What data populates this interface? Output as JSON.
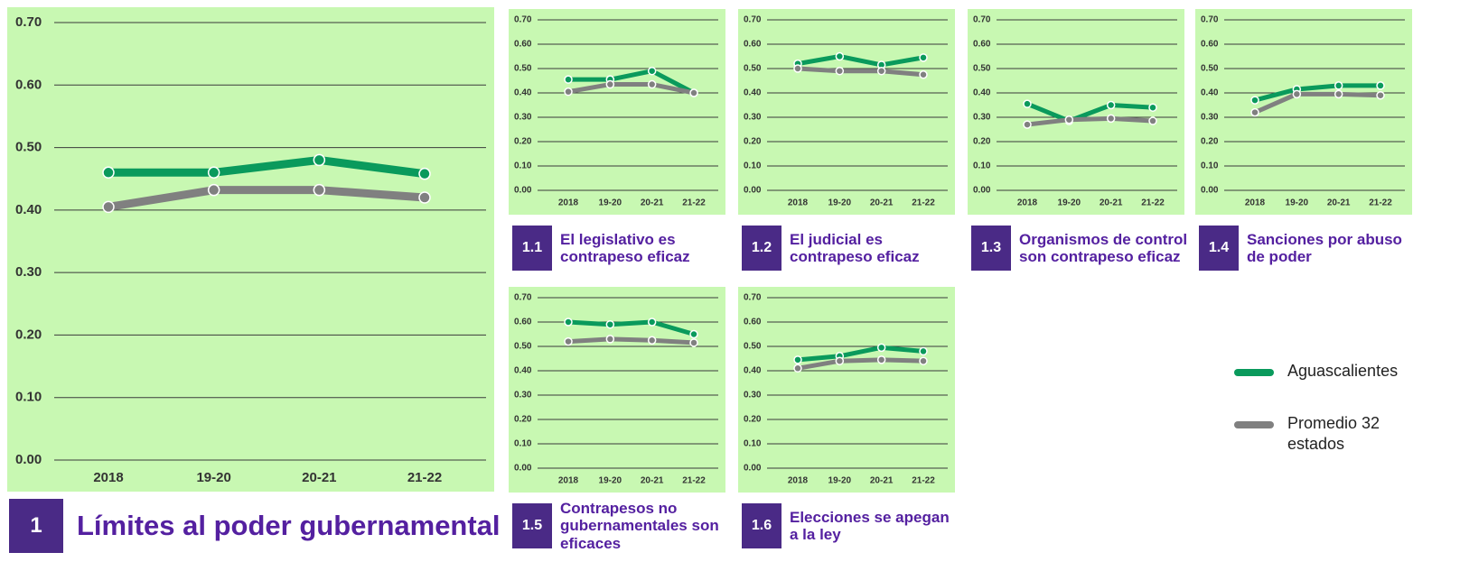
{
  "chart_data": [
    {
      "type": "line",
      "number": "1",
      "title": "Límites al poder gubernamental",
      "categories": [
        "2018",
        "19-20",
        "20-21",
        "21-22"
      ],
      "series": [
        {
          "name": "Aguascalientes",
          "color": "#0a9a5c",
          "values": [
            0.46,
            0.46,
            0.48,
            0.458
          ]
        },
        {
          "name": "Promedio 32 estados",
          "color": "#808080",
          "values": [
            0.405,
            0.432,
            0.432,
            0.42
          ]
        }
      ],
      "ylim": [
        0,
        0.7
      ],
      "yticks": [
        {
          "value": 0,
          "label": "0.00"
        },
        {
          "value": 0.1,
          "label": "0.10"
        },
        {
          "value": 0.2,
          "label": "0.20"
        },
        {
          "value": 0.3,
          "label": "0.30"
        },
        {
          "value": 0.4,
          "label": "0.40"
        },
        {
          "value": 0.5,
          "label": "0.50"
        },
        {
          "value": 0.6,
          "label": "0.60"
        },
        {
          "value": 0.7,
          "label": "0.70"
        }
      ]
    },
    {
      "type": "line",
      "number": "1.1",
      "title": "El legislativo es contrapeso eficaz",
      "categories": [
        "2018",
        "19-20",
        "20-21",
        "21-22"
      ],
      "series": [
        {
          "color": "#0a9a5c",
          "values": [
            0.455,
            0.455,
            0.49,
            0.4
          ]
        },
        {
          "color": "#808080",
          "values": [
            0.405,
            0.435,
            0.435,
            0.4
          ]
        }
      ],
      "ylim": [
        0,
        0.7
      ],
      "yticks": [
        {
          "value": 0,
          "label": "0.00"
        },
        {
          "value": 0.1,
          "label": "0.10"
        },
        {
          "value": 0.2,
          "label": "0.20"
        },
        {
          "value": 0.3,
          "label": "0.30"
        },
        {
          "value": 0.4,
          "label": "0.40"
        },
        {
          "value": 0.5,
          "label": "0.50"
        },
        {
          "value": 0.6,
          "label": "0.60"
        },
        {
          "value": 0.7,
          "label": "0.70"
        }
      ]
    },
    {
      "type": "line",
      "number": "1.2",
      "title": "El judicial es contrapeso eficaz",
      "categories": [
        "2018",
        "19-20",
        "20-21",
        "21-22"
      ],
      "series": [
        {
          "color": "#0a9a5c",
          "values": [
            0.52,
            0.55,
            0.515,
            0.545
          ]
        },
        {
          "color": "#808080",
          "values": [
            0.5,
            0.49,
            0.49,
            0.475
          ]
        }
      ],
      "ylim": [
        0,
        0.7
      ],
      "yticks": [
        {
          "value": 0,
          "label": "0.00"
        },
        {
          "value": 0.1,
          "label": "0.10"
        },
        {
          "value": 0.2,
          "label": "0.20"
        },
        {
          "value": 0.3,
          "label": "0.30"
        },
        {
          "value": 0.4,
          "label": "0.40"
        },
        {
          "value": 0.5,
          "label": "0.50"
        },
        {
          "value": 0.6,
          "label": "0.60"
        },
        {
          "value": 0.7,
          "label": "0.70"
        }
      ]
    },
    {
      "type": "line",
      "number": "1.3",
      "title": "Organismos de control son contrapeso eficaz",
      "categories": [
        "2018",
        "19-20",
        "20-21",
        "21-22"
      ],
      "series": [
        {
          "color": "#0a9a5c",
          "values": [
            0.355,
            0.285,
            0.35,
            0.34
          ]
        },
        {
          "color": "#808080",
          "values": [
            0.27,
            0.29,
            0.295,
            0.285
          ]
        }
      ],
      "ylim": [
        0,
        0.7
      ],
      "yticks": [
        {
          "value": 0,
          "label": "0.00"
        },
        {
          "value": 0.1,
          "label": "0.10"
        },
        {
          "value": 0.2,
          "label": "0.20"
        },
        {
          "value": 0.3,
          "label": "0.30"
        },
        {
          "value": 0.4,
          "label": "0.40"
        },
        {
          "value": 0.5,
          "label": "0.50"
        },
        {
          "value": 0.6,
          "label": "0.60"
        },
        {
          "value": 0.7,
          "label": "0.70"
        }
      ]
    },
    {
      "type": "line",
      "number": "1.4",
      "title": "Sanciones por abuso de poder",
      "categories": [
        "2018",
        "19-20",
        "20-21",
        "21-22"
      ],
      "series": [
        {
          "color": "#0a9a5c",
          "values": [
            0.37,
            0.415,
            0.43,
            0.43
          ]
        },
        {
          "color": "#808080",
          "values": [
            0.32,
            0.395,
            0.395,
            0.39
          ]
        }
      ],
      "ylim": [
        0,
        0.7
      ],
      "yticks": [
        {
          "value": 0,
          "label": "0.00"
        },
        {
          "value": 0.1,
          "label": "0.10"
        },
        {
          "value": 0.2,
          "label": "0.20"
        },
        {
          "value": 0.3,
          "label": "0.30"
        },
        {
          "value": 0.4,
          "label": "0.40"
        },
        {
          "value": 0.5,
          "label": "0.50"
        },
        {
          "value": 0.6,
          "label": "0.60"
        },
        {
          "value": 0.7,
          "label": "0.70"
        }
      ]
    },
    {
      "type": "line",
      "number": "1.5",
      "title": "Contrapesos no gubernamentales son eficaces",
      "categories": [
        "2018",
        "19-20",
        "20-21",
        "21-22"
      ],
      "series": [
        {
          "color": "#0a9a5c",
          "values": [
            0.6,
            0.59,
            0.6,
            0.55
          ]
        },
        {
          "color": "#808080",
          "values": [
            0.52,
            0.53,
            0.525,
            0.515
          ]
        }
      ],
      "ylim": [
        0,
        0.7
      ],
      "yticks": [
        {
          "value": 0,
          "label": "0.00"
        },
        {
          "value": 0.1,
          "label": "0.10"
        },
        {
          "value": 0.2,
          "label": "0.20"
        },
        {
          "value": 0.3,
          "label": "0.30"
        },
        {
          "value": 0.4,
          "label": "0.40"
        },
        {
          "value": 0.5,
          "label": "0.50"
        },
        {
          "value": 0.6,
          "label": "0.60"
        },
        {
          "value": 0.7,
          "label": "0.70"
        }
      ]
    },
    {
      "type": "line",
      "number": "1.6",
      "title": "Elecciones se apegan a la ley",
      "categories": [
        "2018",
        "19-20",
        "20-21",
        "21-22"
      ],
      "series": [
        {
          "color": "#0a9a5c",
          "values": [
            0.445,
            0.46,
            0.495,
            0.48
          ]
        },
        {
          "color": "#808080",
          "values": [
            0.41,
            0.44,
            0.445,
            0.44
          ]
        }
      ],
      "ylim": [
        0,
        0.7
      ],
      "yticks": [
        {
          "value": 0,
          "label": "0.00"
        },
        {
          "value": 0.1,
          "label": "0.10"
        },
        {
          "value": 0.2,
          "label": "0.20"
        },
        {
          "value": 0.3,
          "label": "0.30"
        },
        {
          "value": 0.4,
          "label": "0.40"
        },
        {
          "value": 0.5,
          "label": "0.50"
        },
        {
          "value": 0.6,
          "label": "0.60"
        },
        {
          "value": 0.7,
          "label": "0.70"
        }
      ]
    }
  ]
}
